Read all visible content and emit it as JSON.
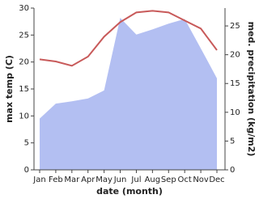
{
  "chart_data": {
    "type": "line",
    "x_label": "date (month)",
    "y_label": "max temp (C)",
    "y2_label": "med. precipitation (kg/m2)",
    "categories": [
      "Jan",
      "Feb",
      "Mar",
      "Apr",
      "May",
      "Jun",
      "Jul",
      "Aug",
      "Sep",
      "Oct",
      "Nov",
      "Dec"
    ],
    "series": [
      {
        "name": "med. precipitation",
        "kind": "area",
        "axis": "y2",
        "color": "#b3bff2",
        "values": [
          8.9,
          11.5,
          11.9,
          12.4,
          13.8,
          26.4,
          23.5,
          24.4,
          25.4,
          26.2,
          21.1,
          15.9
        ]
      },
      {
        "name": "max temp",
        "kind": "line",
        "color": "#c85a5a",
        "values": [
          20.5,
          20.1,
          19.3,
          21.0,
          24.7,
          27.4,
          29.2,
          29.5,
          29.2,
          27.7,
          26.2,
          22.2
        ]
      }
    ],
    "ylim": [
      0,
      30
    ],
    "yticks": [
      0,
      5,
      10,
      15,
      20,
      25,
      30
    ],
    "y2lim": [
      0,
      28.1
    ],
    "y2ticks": [
      0,
      5,
      10,
      15,
      20,
      25
    ]
  }
}
